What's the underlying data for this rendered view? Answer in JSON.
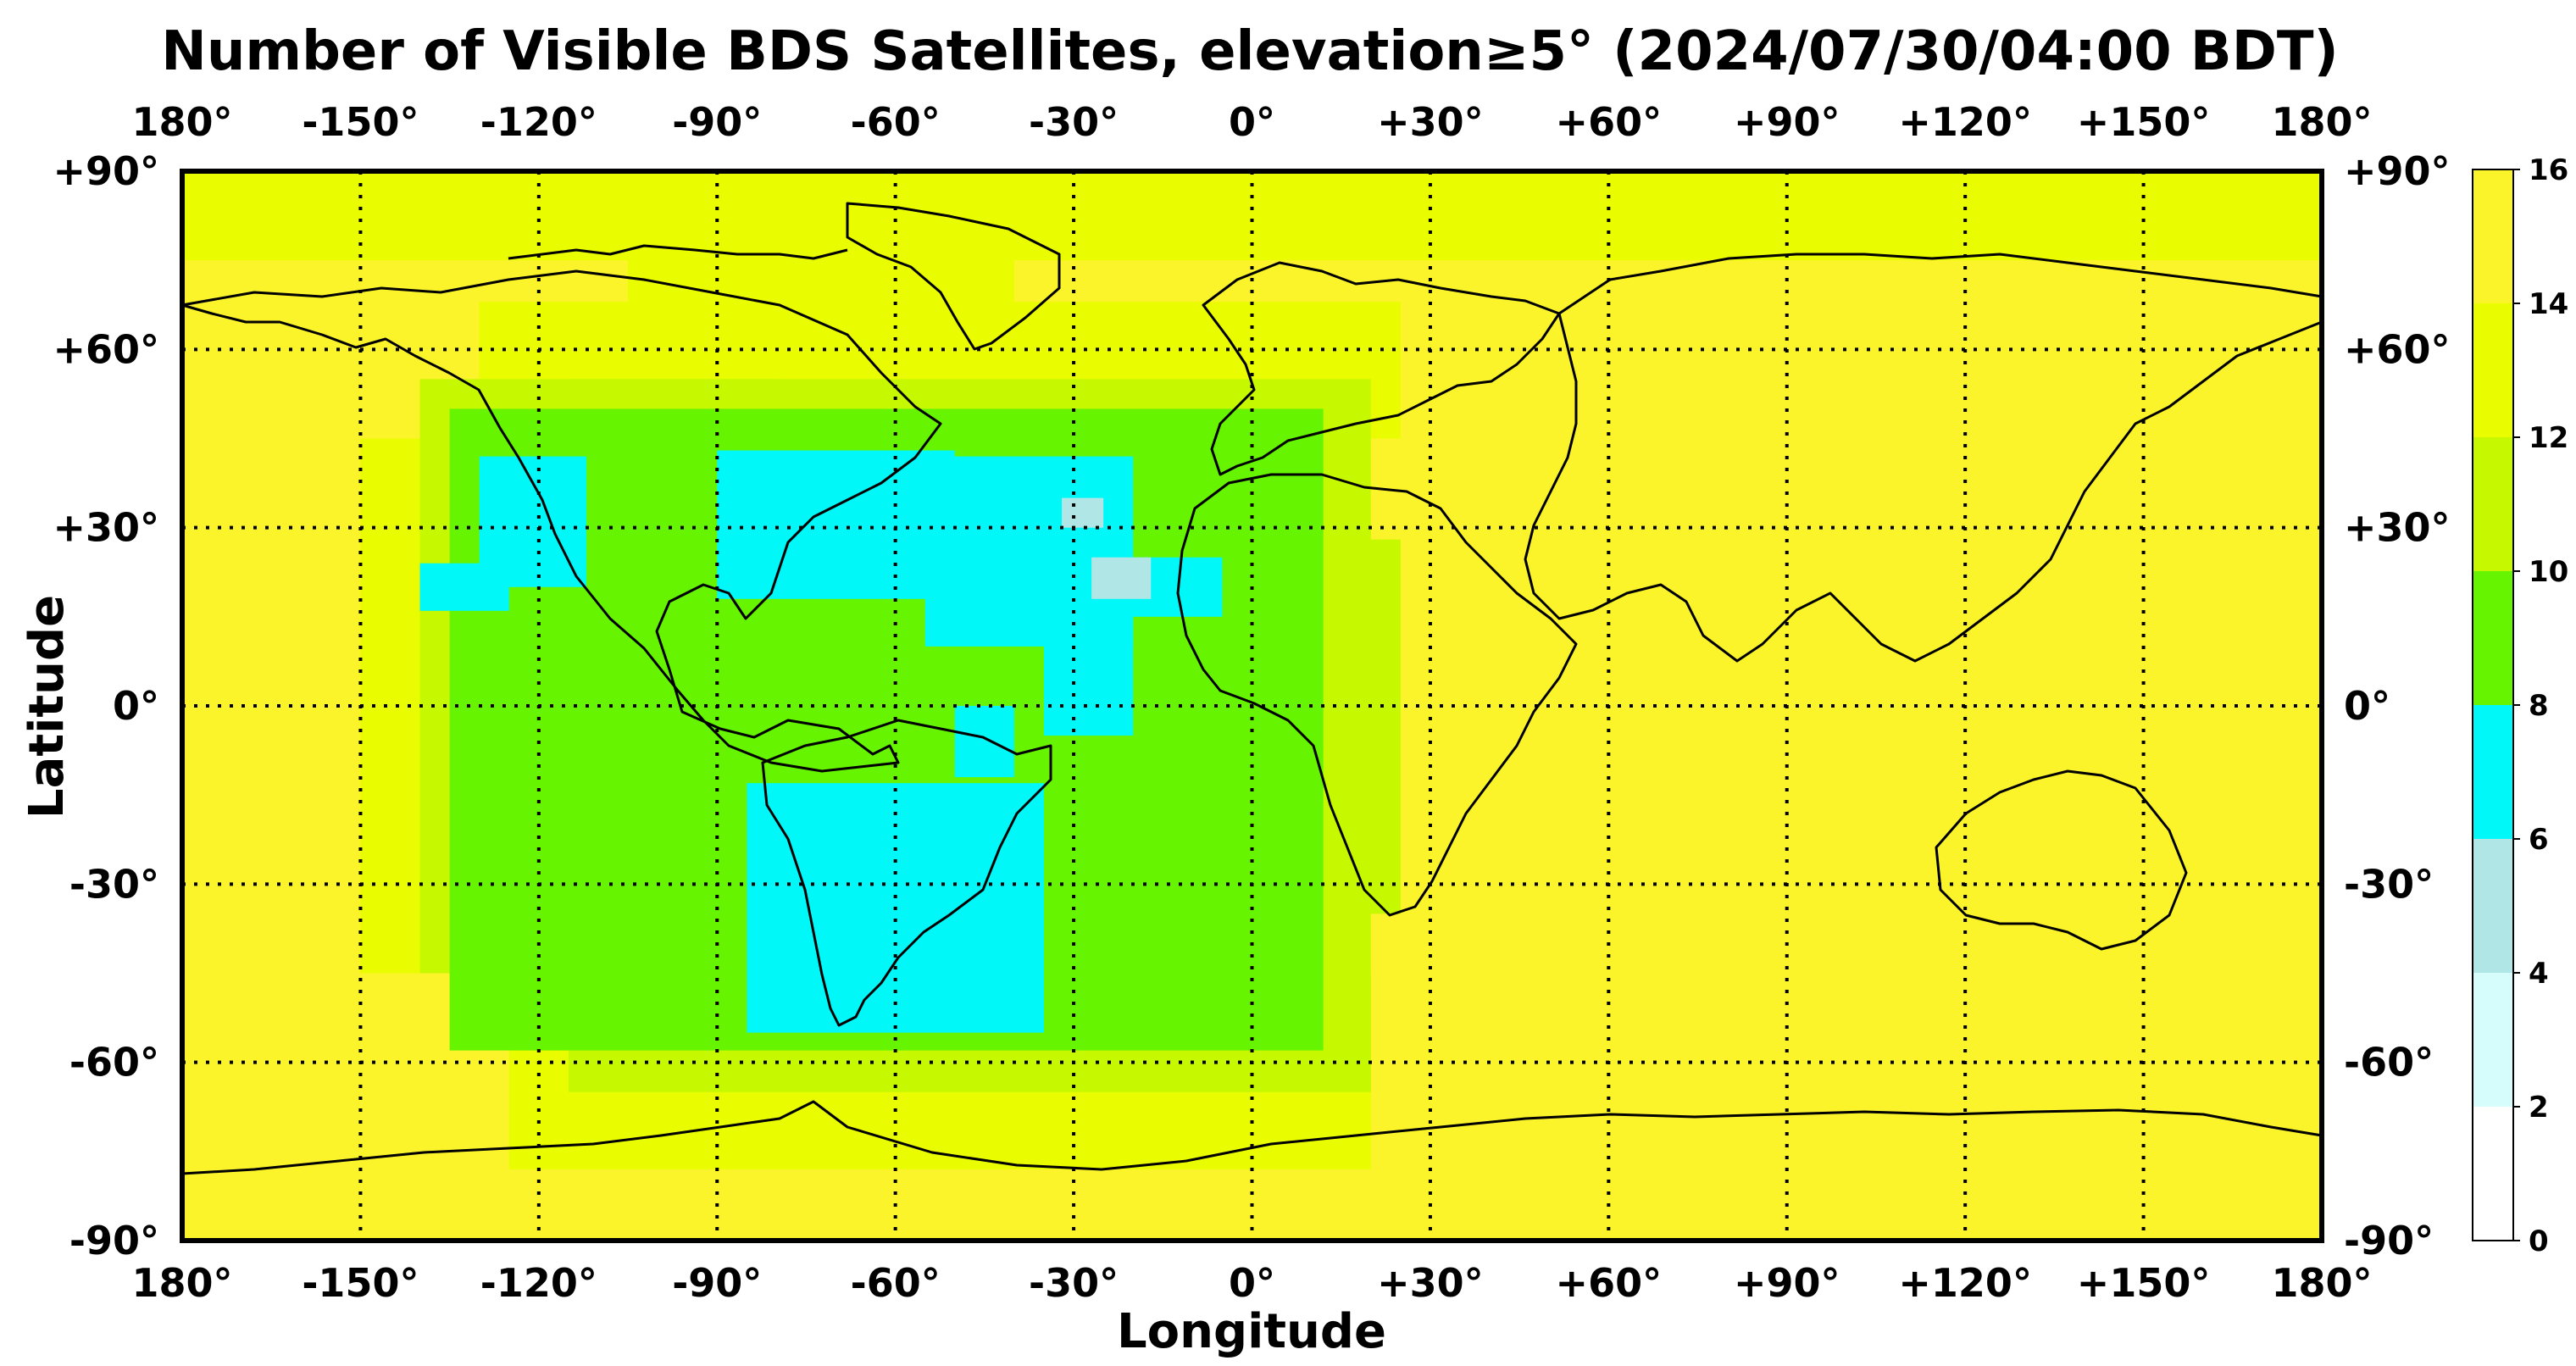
{
  "title": "Number of Visible BDS Satellites, elevation≥5° (2024/07/30/04:00 BDT)",
  "xlabel": "Longitude",
  "ylabel": "Latitude",
  "lon_ticks": [
    "180°",
    "-150°",
    "-120°",
    "-90°",
    "-60°",
    "-30°",
    "0°",
    "+30°",
    "+60°",
    "+90°",
    "+120°",
    "+150°",
    "180°"
  ],
  "lat_ticks": [
    "+90°",
    "+60°",
    "+30°",
    "0°",
    "-30°",
    "-60°",
    "-90°"
  ],
  "colorbar": {
    "ticks": [
      "16",
      "14",
      "12",
      "10",
      "8",
      "6",
      "4",
      "2",
      "0"
    ],
    "levels": [
      {
        "range": [
          0,
          2
        ],
        "color": "#ffffff"
      },
      {
        "range": [
          2,
          4
        ],
        "color": "#d6fcfc"
      },
      {
        "range": [
          4,
          6
        ],
        "color": "#b0e6e6"
      },
      {
        "range": [
          6,
          8
        ],
        "color": "#00f8f8"
      },
      {
        "range": [
          8,
          10
        ],
        "color": "#66f400"
      },
      {
        "range": [
          10,
          12
        ],
        "color": "#c6f800"
      },
      {
        "range": [
          12,
          14
        ],
        "color": "#eafc00"
      },
      {
        "range": [
          14,
          16
        ],
        "color": "#fcf42a"
      }
    ]
  },
  "map_data": {
    "type": "gridded-field",
    "projection": "equirectangular",
    "lon_range": [
      -180,
      180
    ],
    "lat_range": [
      -90,
      90
    ],
    "background_level": 15,
    "regions": [
      {
        "level": 13,
        "lon": [
          -180,
          180
        ],
        "lat": [
          75,
          90
        ]
      },
      {
        "level": 13,
        "lon": [
          -105,
          -40
        ],
        "lat": [
          62,
          82
        ]
      },
      {
        "level": 13,
        "lon": [
          -150,
          -115
        ],
        "lat": [
          -45,
          45
        ]
      },
      {
        "level": 13,
        "lon": [
          -125,
          20
        ],
        "lat": [
          -78,
          -45
        ]
      },
      {
        "level": 13,
        "lon": [
          -130,
          25
        ],
        "lat": [
          45,
          68
        ]
      },
      {
        "level": 11,
        "lon": [
          -140,
          -80
        ],
        "lat": [
          -45,
          55
        ]
      },
      {
        "level": 11,
        "lon": [
          -115,
          20
        ],
        "lat": [
          -65,
          55
        ]
      },
      {
        "level": 11,
        "lon": [
          10,
          25
        ],
        "lat": [
          -35,
          28
        ]
      },
      {
        "level": 9,
        "lon": [
          -135,
          12
        ],
        "lat": [
          -58,
          50
        ]
      },
      {
        "level": 7,
        "lon": [
          -130,
          -112
        ],
        "lat": [
          20,
          42
        ]
      },
      {
        "level": 7,
        "lon": [
          -140,
          -125
        ],
        "lat": [
          16,
          24
        ]
      },
      {
        "level": 7,
        "lon": [
          -90,
          -50
        ],
        "lat": [
          18,
          43
        ]
      },
      {
        "level": 7,
        "lon": [
          -55,
          -20
        ],
        "lat": [
          10,
          42
        ]
      },
      {
        "level": 7,
        "lon": [
          -30,
          -5
        ],
        "lat": [
          15,
          25
        ]
      },
      {
        "level": 7,
        "lon": [
          -35,
          -20
        ],
        "lat": [
          -5,
          20
        ]
      },
      {
        "level": 7,
        "lon": [
          -85,
          -35
        ],
        "lat": [
          -55,
          -13
        ]
      },
      {
        "level": 7,
        "lon": [
          -50,
          -40
        ],
        "lat": [
          -12,
          0
        ]
      },
      {
        "level": 5,
        "lon": [
          -32,
          -25
        ],
        "lat": [
          30,
          35
        ]
      },
      {
        "level": 5,
        "lon": [
          -27,
          -17
        ],
        "lat": [
          18,
          25
        ]
      }
    ]
  }
}
